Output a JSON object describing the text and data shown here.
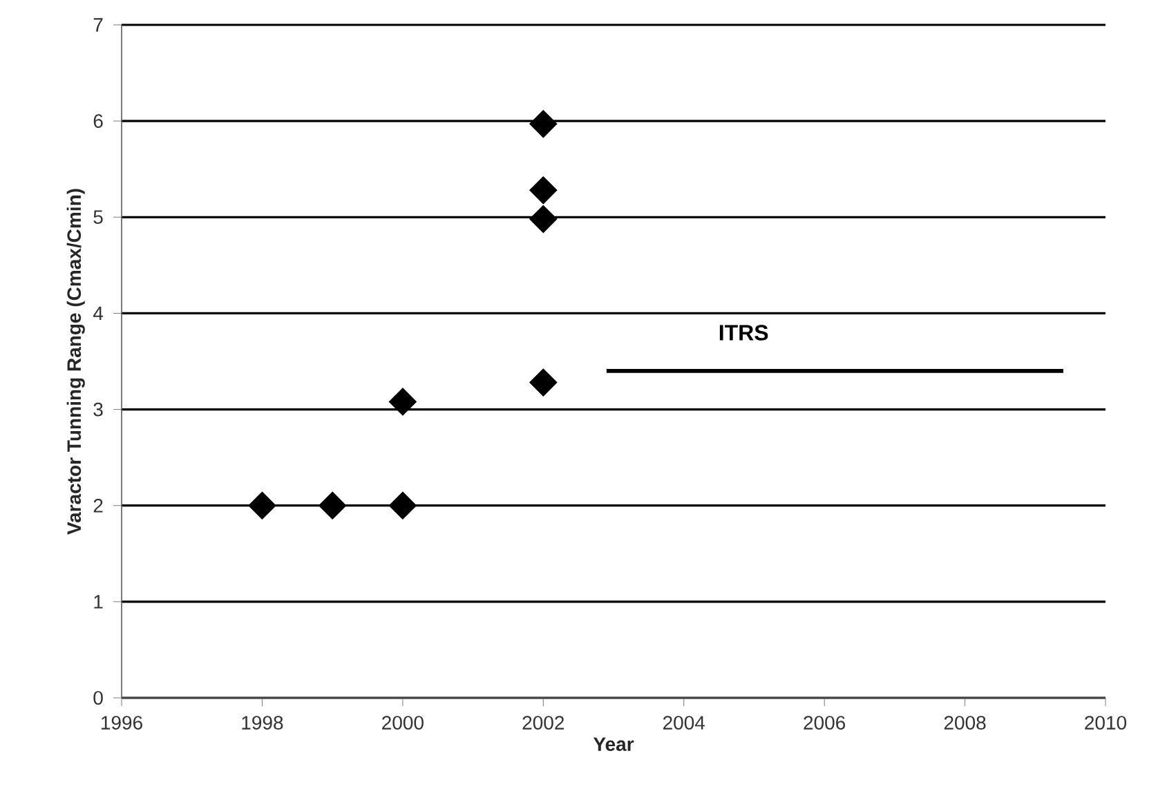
{
  "chart_data": {
    "type": "scatter",
    "xlabel": "Year",
    "ylabel": "Varactor Tunning Range (Cmax/Cmin)",
    "xlim": [
      1996,
      2010
    ],
    "xticks": [
      1996,
      1998,
      2000,
      2002,
      2004,
      2006,
      2008,
      2010
    ],
    "ylim": [
      0,
      7
    ],
    "yticks": [
      0,
      1,
      2,
      3,
      4,
      5,
      6,
      7
    ],
    "grid": "y",
    "series": [
      {
        "marker": "diamond",
        "color": "#000000",
        "x": [
          1998,
          1999,
          2000,
          2000,
          2002,
          2002,
          2002,
          2002
        ],
        "values": [
          2,
          2,
          2,
          3.08,
          3.28,
          4.98,
          5.28,
          5.97
        ]
      },
      {
        "type": "line",
        "marker": "none",
        "name": "ITRS",
        "color": "#000000",
        "x": [
          2002.9,
          2009.4
        ],
        "values": [
          3.4,
          3.4
        ]
      }
    ]
  }
}
